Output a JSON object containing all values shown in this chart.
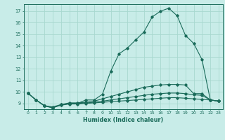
{
  "title": "",
  "xlabel": "Humidex (Indice chaleur)",
  "bg_color": "#c8ece8",
  "grid_color": "#a8d8d0",
  "line_color": "#1a6b5a",
  "xlim": [
    -0.5,
    23.5
  ],
  "ylim": [
    8.5,
    17.6
  ],
  "yticks": [
    9,
    10,
    11,
    12,
    13,
    14,
    15,
    16,
    17
  ],
  "xticks": [
    0,
    1,
    2,
    3,
    4,
    5,
    6,
    7,
    8,
    9,
    10,
    11,
    12,
    13,
    14,
    15,
    16,
    17,
    18,
    19,
    20,
    21,
    22,
    23
  ],
  "series1": [
    [
      0,
      9.9
    ],
    [
      1,
      9.3
    ],
    [
      2,
      8.8
    ],
    [
      3,
      8.6
    ],
    [
      4,
      8.9
    ],
    [
      5,
      9.0
    ],
    [
      6,
      9.0
    ],
    [
      7,
      9.3
    ],
    [
      8,
      9.3
    ],
    [
      9,
      9.8
    ],
    [
      10,
      11.8
    ],
    [
      11,
      13.3
    ],
    [
      12,
      13.8
    ],
    [
      13,
      14.5
    ],
    [
      14,
      15.2
    ],
    [
      15,
      16.5
    ],
    [
      16,
      17.0
    ],
    [
      17,
      17.25
    ],
    [
      18,
      16.6
    ],
    [
      19,
      14.9
    ],
    [
      20,
      14.2
    ],
    [
      21,
      12.8
    ],
    [
      22,
      9.3
    ],
    [
      23,
      9.2
    ]
  ],
  "series2": [
    [
      0,
      9.9
    ],
    [
      1,
      9.3
    ],
    [
      2,
      8.8
    ],
    [
      3,
      8.7
    ],
    [
      4,
      8.9
    ],
    [
      5,
      9.05
    ],
    [
      6,
      9.05
    ],
    [
      7,
      9.1
    ],
    [
      8,
      9.2
    ],
    [
      9,
      9.4
    ],
    [
      10,
      9.6
    ],
    [
      11,
      9.8
    ],
    [
      12,
      10.0
    ],
    [
      13,
      10.2
    ],
    [
      14,
      10.4
    ],
    [
      15,
      10.5
    ],
    [
      16,
      10.6
    ],
    [
      17,
      10.65
    ],
    [
      18,
      10.65
    ],
    [
      19,
      10.6
    ],
    [
      20,
      9.85
    ],
    [
      21,
      9.85
    ],
    [
      22,
      9.3
    ],
    [
      23,
      9.2
    ]
  ],
  "series3": [
    [
      0,
      9.9
    ],
    [
      1,
      9.3
    ],
    [
      2,
      8.8
    ],
    [
      3,
      8.65
    ],
    [
      4,
      8.85
    ],
    [
      5,
      9.0
    ],
    [
      6,
      9.0
    ],
    [
      7,
      9.05
    ],
    [
      8,
      9.1
    ],
    [
      9,
      9.2
    ],
    [
      10,
      9.3
    ],
    [
      11,
      9.4
    ],
    [
      12,
      9.5
    ],
    [
      13,
      9.6
    ],
    [
      14,
      9.7
    ],
    [
      15,
      9.8
    ],
    [
      16,
      9.85
    ],
    [
      17,
      9.9
    ],
    [
      18,
      9.9
    ],
    [
      19,
      9.85
    ],
    [
      20,
      9.75
    ],
    [
      21,
      9.7
    ],
    [
      22,
      9.3
    ],
    [
      23,
      9.2
    ]
  ],
  "series4": [
    [
      0,
      9.9
    ],
    [
      1,
      9.3
    ],
    [
      2,
      8.8
    ],
    [
      3,
      8.65
    ],
    [
      4,
      8.85
    ],
    [
      5,
      8.95
    ],
    [
      6,
      8.95
    ],
    [
      7,
      9.0
    ],
    [
      8,
      9.05
    ],
    [
      9,
      9.1
    ],
    [
      10,
      9.15
    ],
    [
      11,
      9.2
    ],
    [
      12,
      9.25
    ],
    [
      13,
      9.3
    ],
    [
      14,
      9.35
    ],
    [
      15,
      9.4
    ],
    [
      16,
      9.45
    ],
    [
      17,
      9.5
    ],
    [
      18,
      9.5
    ],
    [
      19,
      9.45
    ],
    [
      20,
      9.4
    ],
    [
      21,
      9.35
    ],
    [
      22,
      9.3
    ],
    [
      23,
      9.2
    ]
  ]
}
